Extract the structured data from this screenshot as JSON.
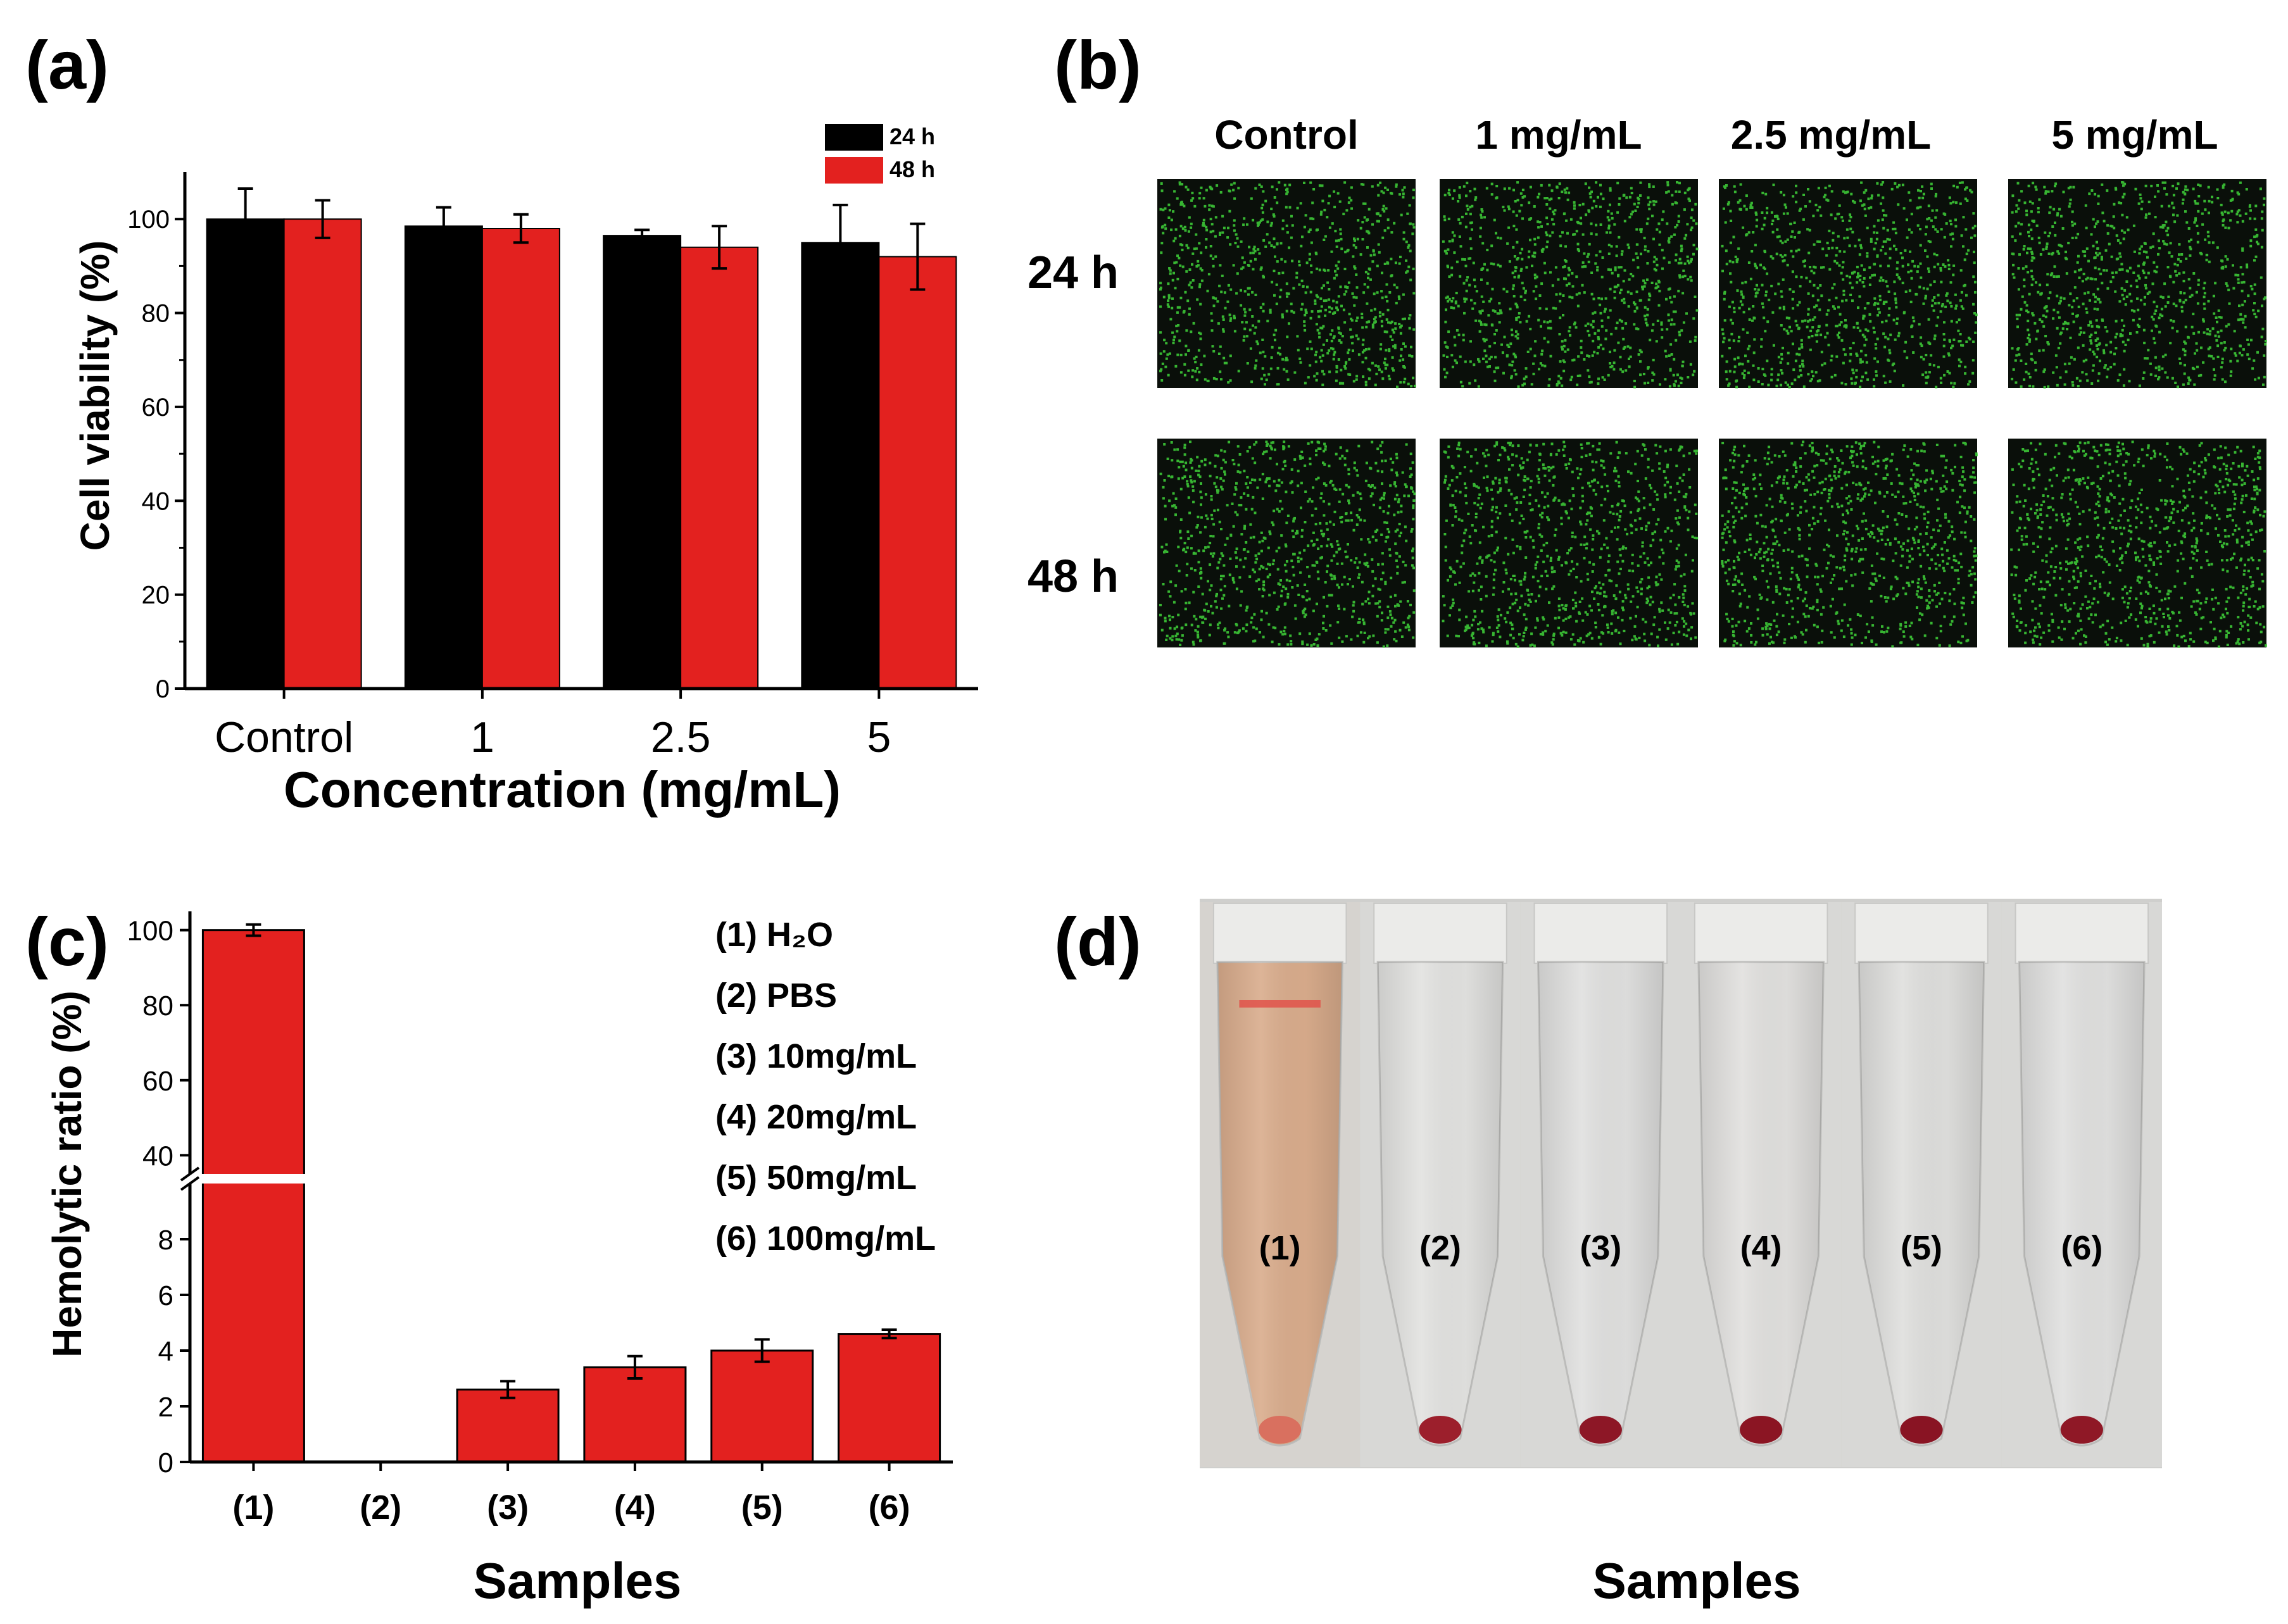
{
  "panels": {
    "a": {
      "label": "(a)"
    },
    "b": {
      "label": "(b)",
      "col_headers": [
        "Control",
        "1 mg/mL",
        "2.5 mg/mL",
        "5 mg/mL"
      ],
      "row_headers": [
        "24 h",
        "48 h"
      ],
      "image_color": "#0a0f0a",
      "cell_color": "#3fd23a"
    },
    "c": {
      "label": "(c)"
    },
    "d": {
      "label": "(d)",
      "tube_labels": [
        "(1)",
        "(2)",
        "(3)",
        "(4)",
        "(5)",
        "(6)"
      ],
      "xlabel": "Samples",
      "tube_colors": [
        "#d9ac8c",
        "#e2e2e0",
        "#e0e0df",
        "#e1e0de",
        "#dfdfdd",
        "#e0e0df"
      ],
      "pellet_colors": [
        "#d9705f",
        "#9c1f2c",
        "#8d1726",
        "#8b1523",
        "#891423",
        "#8f1826"
      ]
    }
  },
  "chart_data": [
    {
      "panel": "a",
      "type": "bar",
      "categories": [
        "Control",
        "1",
        "2.5",
        "5"
      ],
      "series": [
        {
          "name": "24 h",
          "color": "#000000",
          "values": [
            100,
            98.5,
            96.5,
            95
          ],
          "errors": [
            6.5,
            4,
            1.2,
            8
          ]
        },
        {
          "name": "48 h",
          "color": "#e3211f",
          "values": [
            100,
            98,
            94,
            92
          ],
          "errors": [
            4,
            3,
            4.5,
            7
          ]
        }
      ],
      "xlabel": "Concentration (mg/mL)",
      "ylabel": "Cell viability (%)",
      "ylim": [
        0,
        110
      ],
      "yticks": [
        "0",
        "20",
        "40",
        "60",
        "80",
        "100"
      ],
      "legend": "top-right"
    },
    {
      "panel": "c",
      "type": "bar",
      "categories": [
        "(1)",
        "(2)",
        "(3)",
        "(4)",
        "(5)",
        "(6)"
      ],
      "series": [
        {
          "color": "#e3211f",
          "values": [
            100,
            0,
            2.6,
            3.4,
            4.0,
            4.6
          ],
          "errors": [
            1.5,
            0,
            0.3,
            0.4,
            0.4,
            0.15
          ]
        }
      ],
      "xlabel": "Samples",
      "ylabel": "Hemolytic ratio (%)",
      "axis_break": {
        "lower": [
          0,
          10
        ],
        "upper": [
          35,
          105
        ]
      },
      "yticks_lower": [
        "0",
        "2",
        "4",
        "6",
        "8"
      ],
      "yticks_upper": [
        "40",
        "60",
        "80",
        "100"
      ],
      "legend_items": [
        "(1) H₂O",
        "(2) PBS",
        "(3) 10mg/mL",
        "(4) 20mg/mL",
        "(5) 50mg/mL",
        "(6) 100mg/mL"
      ],
      "legend": "top-right"
    }
  ]
}
